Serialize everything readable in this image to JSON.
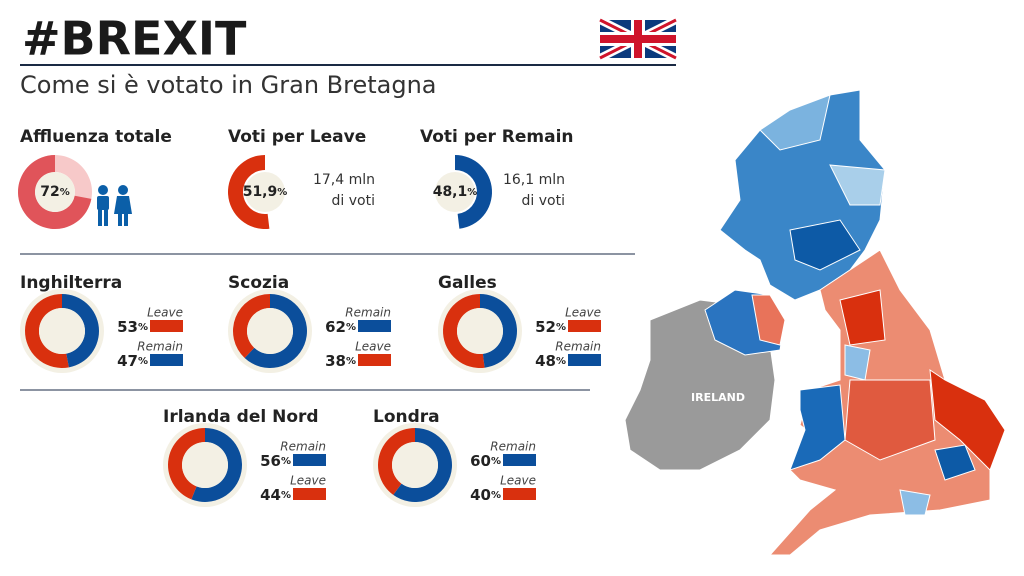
{
  "header": {
    "title": "#BREXIT",
    "subtitle": "Come si è votato in Gran Bretagna"
  },
  "unit": "%",
  "summary": {
    "turnout": {
      "label": "Affluenza totale",
      "value": 72,
      "color": "#e0545a"
    },
    "leave": {
      "label": "Voti per Leave",
      "value": 51.9,
      "value_label": "51,9",
      "color": "#d9300e",
      "votes": [
        "17,4 mln",
        "di voti"
      ]
    },
    "remain": {
      "label": "Voti per Remain",
      "value": 48.1,
      "value_label": "48,1",
      "color": "#0b4e9b",
      "votes": [
        "16,1 mln",
        "di voti"
      ]
    }
  },
  "regions": [
    {
      "name": "Inghilterra",
      "results": [
        {
          "label": "Leave",
          "value": 53,
          "color": "#d9300e"
        },
        {
          "label": "Remain",
          "value": 47,
          "color": "#0b4e9b"
        }
      ]
    },
    {
      "name": "Scozia",
      "results": [
        {
          "label": "Remain",
          "value": 62,
          "color": "#0b4e9b"
        },
        {
          "label": "Leave",
          "value": 38,
          "color": "#d9300e"
        }
      ]
    },
    {
      "name": "Galles",
      "results": [
        {
          "label": "Leave",
          "value": 52,
          "color": "#d9300e"
        },
        {
          "label": "Remain",
          "value": 48,
          "color": "#0b4e9b"
        }
      ]
    },
    {
      "name": "Irlanda del Nord",
      "results": [
        {
          "label": "Remain",
          "value": 56,
          "color": "#0b4e9b"
        },
        {
          "label": "Leave",
          "value": 44,
          "color": "#d9300e"
        }
      ]
    },
    {
      "name": "Londra",
      "results": [
        {
          "label": "Remain",
          "value": 60,
          "color": "#0b4e9b"
        },
        {
          "label": "Leave",
          "value": 40,
          "color": "#d9300e"
        }
      ]
    }
  ],
  "map": {
    "label": "IRELAND"
  }
}
